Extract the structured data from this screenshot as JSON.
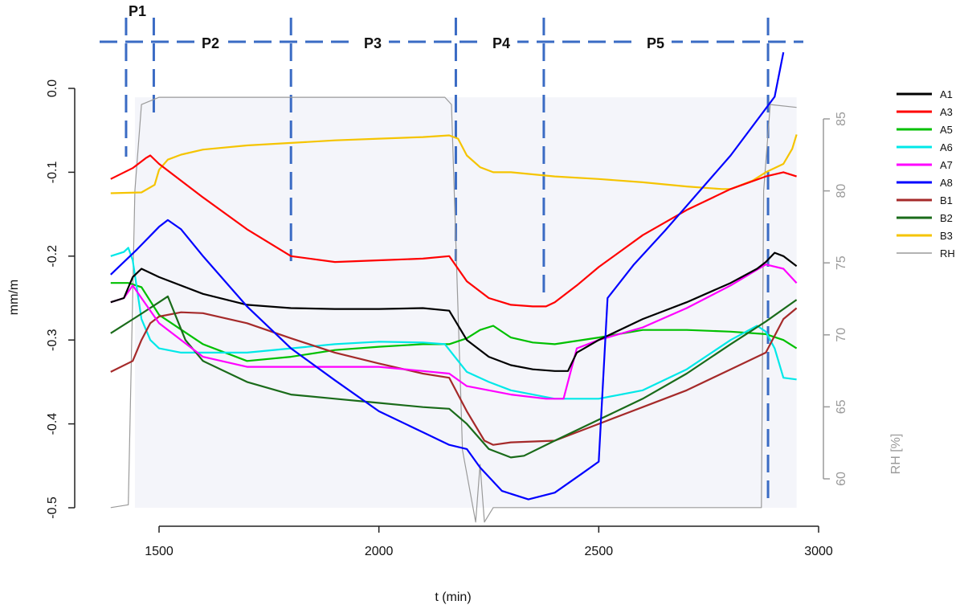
{
  "chart_data": {
    "type": "line",
    "title": "",
    "xlabel": "t (min)",
    "ylabel": "mm/m",
    "y2label": "RH [%]",
    "xlim": [
      1380,
      3000
    ],
    "ylim": [
      -0.5,
      0.0
    ],
    "y2lim": [
      57.5,
      87.5
    ],
    "x_ticks": [
      1500,
      2000,
      2500,
      3000
    ],
    "y_ticks": [
      "-0.5",
      "-0.4",
      "-0.3",
      "-0.2",
      "-0.1",
      "0.0"
    ],
    "y_tick_values": [
      -0.5,
      -0.4,
      -0.3,
      -0.2,
      -0.1,
      0.0
    ],
    "y2_ticks": [
      60,
      65,
      70,
      75,
      80,
      85
    ],
    "x_tick_labels": [
      "1500",
      "2000",
      "2500",
      "3000"
    ],
    "y2_tick_labels": [
      "60",
      "65",
      "70",
      "75",
      "80",
      "85"
    ],
    "grid": false,
    "legend_position": "right",
    "phases": [
      {
        "label": "P1",
        "boundary_x": 1425
      },
      {
        "label": "P2",
        "boundary_x": 1488
      },
      {
        "label": "P3",
        "boundary_x": 1800
      },
      {
        "label": "P4",
        "boundary_x": 2175
      },
      {
        "label": "P5",
        "boundary_x": 2375
      }
    ],
    "phase_end_x": 2885,
    "series": [
      {
        "name": "A1",
        "color": "#000000",
        "x": [
          1390,
          1420,
          1440,
          1460,
          1500,
          1600,
          1700,
          1800,
          1900,
          2000,
          2100,
          2160,
          2200,
          2250,
          2300,
          2350,
          2400,
          2430,
          2450,
          2500,
          2600,
          2700,
          2800,
          2860,
          2880,
          2900,
          2920,
          2950
        ],
        "y": [
          -0.255,
          -0.25,
          -0.225,
          -0.215,
          -0.225,
          -0.245,
          -0.258,
          -0.262,
          -0.263,
          -0.263,
          -0.262,
          -0.265,
          -0.3,
          -0.32,
          -0.33,
          -0.335,
          -0.337,
          -0.337,
          -0.315,
          -0.3,
          -0.275,
          -0.255,
          -0.232,
          -0.215,
          -0.207,
          -0.196,
          -0.2,
          -0.212
        ]
      },
      {
        "name": "A3",
        "color": "#ff0000",
        "x": [
          1390,
          1440,
          1470,
          1480,
          1500,
          1600,
          1700,
          1800,
          1900,
          2000,
          2100,
          2160,
          2200,
          2250,
          2300,
          2350,
          2380,
          2400,
          2450,
          2500,
          2600,
          2700,
          2800,
          2880,
          2920,
          2950
        ],
        "y": [
          -0.108,
          -0.095,
          -0.083,
          -0.08,
          -0.09,
          -0.13,
          -0.168,
          -0.2,
          -0.207,
          -0.205,
          -0.203,
          -0.2,
          -0.23,
          -0.25,
          -0.258,
          -0.26,
          -0.26,
          -0.255,
          -0.235,
          -0.213,
          -0.175,
          -0.145,
          -0.12,
          -0.105,
          -0.1,
          -0.105
        ]
      },
      {
        "name": "A5",
        "color": "#00c000",
        "x": [
          1390,
          1430,
          1460,
          1500,
          1600,
          1700,
          1800,
          1900,
          2000,
          2100,
          2160,
          2200,
          2230,
          2260,
          2300,
          2350,
          2400,
          2500,
          2600,
          2700,
          2800,
          2880,
          2920,
          2950
        ],
        "y": [
          -0.232,
          -0.232,
          -0.237,
          -0.27,
          -0.305,
          -0.325,
          -0.32,
          -0.312,
          -0.308,
          -0.305,
          -0.305,
          -0.298,
          -0.288,
          -0.283,
          -0.297,
          -0.303,
          -0.305,
          -0.297,
          -0.288,
          -0.288,
          -0.29,
          -0.293,
          -0.3,
          -0.31
        ]
      },
      {
        "name": "A6",
        "color": "#00e8e8",
        "x": [
          1390,
          1420,
          1430,
          1440,
          1460,
          1480,
          1500,
          1550,
          1600,
          1700,
          1800,
          1900,
          2000,
          2100,
          2150,
          2200,
          2250,
          2300,
          2400,
          2500,
          2600,
          2700,
          2800,
          2860,
          2880,
          2900,
          2920,
          2950
        ],
        "y": [
          -0.2,
          -0.195,
          -0.19,
          -0.205,
          -0.275,
          -0.3,
          -0.31,
          -0.315,
          -0.315,
          -0.315,
          -0.31,
          -0.305,
          -0.302,
          -0.303,
          -0.305,
          -0.338,
          -0.35,
          -0.36,
          -0.37,
          -0.37,
          -0.36,
          -0.335,
          -0.3,
          -0.283,
          -0.29,
          -0.31,
          -0.345,
          -0.347
        ]
      },
      {
        "name": "A7",
        "color": "#ff00ff",
        "x": [
          1390,
          1420,
          1440,
          1460,
          1500,
          1600,
          1700,
          1800,
          1900,
          2000,
          2100,
          2160,
          2200,
          2300,
          2380,
          2420,
          2450,
          2500,
          2600,
          2700,
          2800,
          2880,
          2920,
          2950
        ],
        "y": [
          -0.255,
          -0.25,
          -0.235,
          -0.25,
          -0.28,
          -0.32,
          -0.332,
          -0.332,
          -0.332,
          -0.332,
          -0.337,
          -0.34,
          -0.355,
          -0.365,
          -0.37,
          -0.37,
          -0.31,
          -0.3,
          -0.285,
          -0.262,
          -0.235,
          -0.21,
          -0.215,
          -0.232
        ]
      },
      {
        "name": "A8",
        "color": "#0000ff",
        "x": [
          1390,
          1450,
          1500,
          1520,
          1550,
          1600,
          1700,
          1800,
          1900,
          2000,
          2100,
          2160,
          2200,
          2230,
          2280,
          2340,
          2400,
          2460,
          2500,
          2520,
          2580,
          2650,
          2700,
          2800,
          2900,
          2920
        ],
        "y": [
          -0.222,
          -0.192,
          -0.165,
          -0.157,
          -0.168,
          -0.2,
          -0.26,
          -0.31,
          -0.348,
          -0.385,
          -0.41,
          -0.425,
          -0.43,
          -0.452,
          -0.48,
          -0.49,
          -0.482,
          -0.46,
          -0.445,
          -0.25,
          -0.21,
          -0.17,
          -0.14,
          -0.08,
          -0.01,
          0.043
        ]
      },
      {
        "name": "B1",
        "color": "#a52a2a",
        "x": [
          1390,
          1440,
          1460,
          1480,
          1500,
          1550,
          1600,
          1700,
          1800,
          1900,
          2000,
          2100,
          2160,
          2200,
          2240,
          2260,
          2300,
          2400,
          2500,
          2600,
          2700,
          2800,
          2880,
          2920,
          2950
        ],
        "y": [
          -0.338,
          -0.325,
          -0.3,
          -0.28,
          -0.272,
          -0.267,
          -0.268,
          -0.28,
          -0.298,
          -0.315,
          -0.328,
          -0.34,
          -0.345,
          -0.385,
          -0.42,
          -0.425,
          -0.422,
          -0.42,
          -0.4,
          -0.38,
          -0.36,
          -0.335,
          -0.315,
          -0.275,
          -0.262
        ]
      },
      {
        "name": "B2",
        "color": "#1a6b1a",
        "x": [
          1390,
          1450,
          1500,
          1520,
          1560,
          1600,
          1700,
          1800,
          1900,
          2000,
          2100,
          2160,
          2200,
          2250,
          2300,
          2330,
          2400,
          2500,
          2600,
          2700,
          2800,
          2880,
          2950
        ],
        "y": [
          -0.292,
          -0.272,
          -0.255,
          -0.248,
          -0.3,
          -0.325,
          -0.35,
          -0.365,
          -0.37,
          -0.375,
          -0.38,
          -0.382,
          -0.4,
          -0.43,
          -0.44,
          -0.438,
          -0.42,
          -0.395,
          -0.37,
          -0.34,
          -0.305,
          -0.278,
          -0.252
        ]
      },
      {
        "name": "B3",
        "color": "#f5c400",
        "x": [
          1390,
          1460,
          1490,
          1500,
          1520,
          1550,
          1600,
          1700,
          1800,
          1900,
          2000,
          2100,
          2160,
          2180,
          2200,
          2230,
          2260,
          2300,
          2400,
          2500,
          2600,
          2700,
          2780,
          2800,
          2850,
          2880,
          2920,
          2940,
          2950
        ],
        "y": [
          -0.125,
          -0.124,
          -0.115,
          -0.097,
          -0.085,
          -0.079,
          -0.073,
          -0.068,
          -0.065,
          -0.062,
          -0.06,
          -0.058,
          -0.056,
          -0.06,
          -0.08,
          -0.094,
          -0.1,
          -0.1,
          -0.105,
          -0.108,
          -0.112,
          -0.117,
          -0.12,
          -0.12,
          -0.11,
          -0.1,
          -0.09,
          -0.072,
          -0.055
        ]
      },
      {
        "name": "RH",
        "color": "#9a9a9a",
        "axis": "right",
        "x": [
          1390,
          1430,
          1445,
          1460,
          1500,
          1800,
          2150,
          2165,
          2190,
          2220,
          2230,
          2240,
          2260,
          2400,
          2600,
          2870,
          2875,
          2890,
          2950
        ],
        "y": [
          58.0,
          58.2,
          80.0,
          86.0,
          86.5,
          86.5,
          86.5,
          86.0,
          62.0,
          57.0,
          61.0,
          57.0,
          58.0,
          58.0,
          58.0,
          58.0,
          80.0,
          86.0,
          85.8
        ]
      }
    ]
  }
}
